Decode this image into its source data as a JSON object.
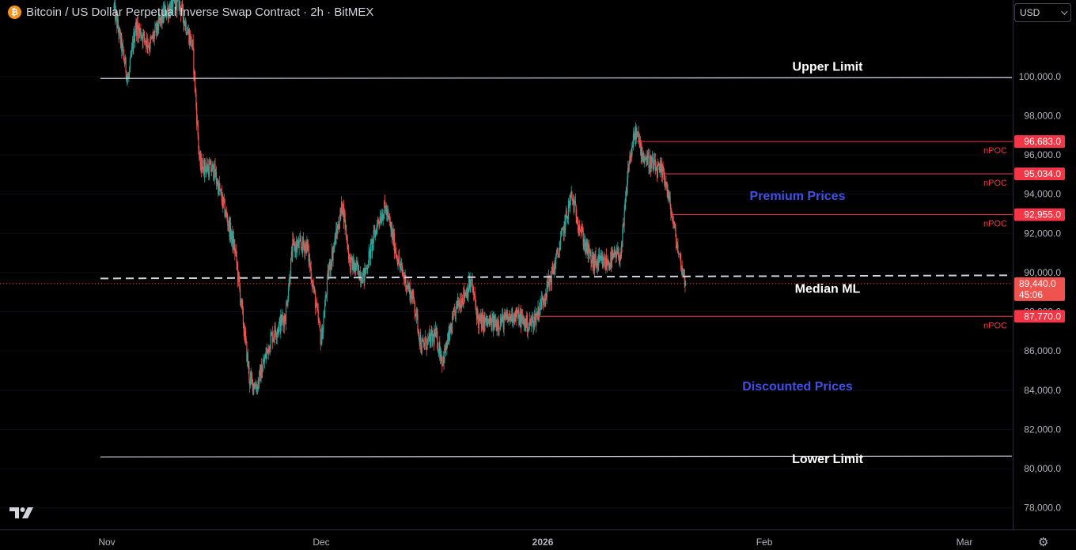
{
  "header": {
    "coin_symbol": "₿",
    "title": "Bitcoin / US Dollar Perpetual Inverse Swap Contract · 2h · BitMEX"
  },
  "currency": {
    "label": "USD"
  },
  "icons": {
    "logo": "tradingview-logo-icon",
    "settings": "gear-icon",
    "dropdown": "chevron-down-icon"
  },
  "colors": {
    "background": "#000000",
    "up": "#26a69a",
    "down": "#ef5350",
    "npoc": "#f23645",
    "zone_text": "#3f51e5",
    "level_line": "#d1d4dc",
    "axis_text": "#b2b5be"
  },
  "chart_data": {
    "type": "candlestick",
    "symbol": "XBTUSD",
    "interval": "2h",
    "x_axis": {
      "ticks": [
        {
          "label": "Nov",
          "date": "2025-11-01"
        },
        {
          "label": "Dec",
          "date": "2025-12-01"
        },
        {
          "label": "2026",
          "date": "2026-01-01"
        },
        {
          "label": "Feb",
          "date": "2026-02-01"
        },
        {
          "label": "Mar",
          "date": "2026-03-01"
        }
      ]
    },
    "y_axis": {
      "ylim": [
        76900,
        103900
      ],
      "ticks": [
        "100,000.0",
        "98,000.0",
        "96,000.0",
        "94,000.0",
        "92,000.0",
        "90,000.0",
        "88,000.0",
        "86,000.0",
        "84,000.0",
        "82,000.0",
        "80,000.0",
        "78,000.0"
      ]
    },
    "price_path": [
      {
        "date": "2025-11-02",
        "price": 103500
      },
      {
        "date": "2025-11-04",
        "price": 99800
      },
      {
        "date": "2025-11-05",
        "price": 102600
      },
      {
        "date": "2025-11-07",
        "price": 101600
      },
      {
        "date": "2025-11-09",
        "price": 103200
      },
      {
        "date": "2025-11-11",
        "price": 103900
      },
      {
        "date": "2025-11-13",
        "price": 101500
      },
      {
        "date": "2025-11-14",
        "price": 95500
      },
      {
        "date": "2025-11-16",
        "price": 95200
      },
      {
        "date": "2025-11-18",
        "price": 92500
      },
      {
        "date": "2025-11-19",
        "price": 91000
      },
      {
        "date": "2025-11-21",
        "price": 84500
      },
      {
        "date": "2025-11-22",
        "price": 84200
      },
      {
        "date": "2025-11-24",
        "price": 86700
      },
      {
        "date": "2025-11-26",
        "price": 87800
      },
      {
        "date": "2025-11-27",
        "price": 91300
      },
      {
        "date": "2025-11-29",
        "price": 91400
      },
      {
        "date": "2025-12-01",
        "price": 86500
      },
      {
        "date": "2025-12-02",
        "price": 90000
      },
      {
        "date": "2025-12-04",
        "price": 93500
      },
      {
        "date": "2025-12-05",
        "price": 90500
      },
      {
        "date": "2025-12-07",
        "price": 89800
      },
      {
        "date": "2025-12-09",
        "price": 92700
      },
      {
        "date": "2025-12-10",
        "price": 93300
      },
      {
        "date": "2025-12-12",
        "price": 90300
      },
      {
        "date": "2025-12-14",
        "price": 88500
      },
      {
        "date": "2025-12-15",
        "price": 86200
      },
      {
        "date": "2025-12-17",
        "price": 86800
      },
      {
        "date": "2025-12-18",
        "price": 85500
      },
      {
        "date": "2025-12-20",
        "price": 88300
      },
      {
        "date": "2025-12-22",
        "price": 89500
      },
      {
        "date": "2025-12-23",
        "price": 87500
      },
      {
        "date": "2025-12-25",
        "price": 87400
      },
      {
        "date": "2025-12-27",
        "price": 87600
      },
      {
        "date": "2025-12-28",
        "price": 87900
      },
      {
        "date": "2025-12-30",
        "price": 87300
      },
      {
        "date": "2025-12-31",
        "price": 87700
      },
      {
        "date": "2026-01-02",
        "price": 89600
      },
      {
        "date": "2026-01-03",
        "price": 90800
      },
      {
        "date": "2026-01-05",
        "price": 93900
      },
      {
        "date": "2026-01-07",
        "price": 91300
      },
      {
        "date": "2026-01-08",
        "price": 90500
      },
      {
        "date": "2026-01-10",
        "price": 90500
      },
      {
        "date": "2026-01-12",
        "price": 91000
      },
      {
        "date": "2026-01-13",
        "price": 95500
      },
      {
        "date": "2026-01-14",
        "price": 97200
      },
      {
        "date": "2026-01-15",
        "price": 96000
      },
      {
        "date": "2026-01-17",
        "price": 95200
      },
      {
        "date": "2026-01-18",
        "price": 95000
      },
      {
        "date": "2026-01-19",
        "price": 93000
      },
      {
        "date": "2026-01-20",
        "price": 91000
      },
      {
        "date": "2026-01-21",
        "price": 89440
      }
    ],
    "levels": [
      {
        "name": "Upper Limit",
        "price": 99900,
        "from": "2025-11-01",
        "to": "2026-03-03",
        "style": "solid"
      },
      {
        "name": "Median ML",
        "price": 89700,
        "from": "2025-11-01",
        "to": "2026-03-03",
        "style": "dashed"
      },
      {
        "name": "Lower Limit",
        "price": 80600,
        "from": "2025-11-01",
        "to": "2026-03-03",
        "style": "solid"
      }
    ],
    "zones": [
      {
        "label": "Premium Prices",
        "price": 93900
      },
      {
        "label": "Discounted Prices",
        "price": 84200
      }
    ],
    "npoc": [
      {
        "label": "nPOC",
        "price": 96683.0,
        "price_label": "96,683.0",
        "from": "2026-01-14"
      },
      {
        "label": "nPOC",
        "price": 95034.0,
        "price_label": "95,034.0",
        "from": "2026-01-18"
      },
      {
        "label": "nPOC",
        "price": 92955.0,
        "price_label": "92,955.0",
        "from": "2026-01-19"
      },
      {
        "label": "nPOC",
        "price": 87770.0,
        "price_label": "87,770.0",
        "from": "2025-12-31"
      }
    ],
    "last_price": {
      "price": 89440.0,
      "label": "89,440.0",
      "countdown": "45:06"
    }
  }
}
